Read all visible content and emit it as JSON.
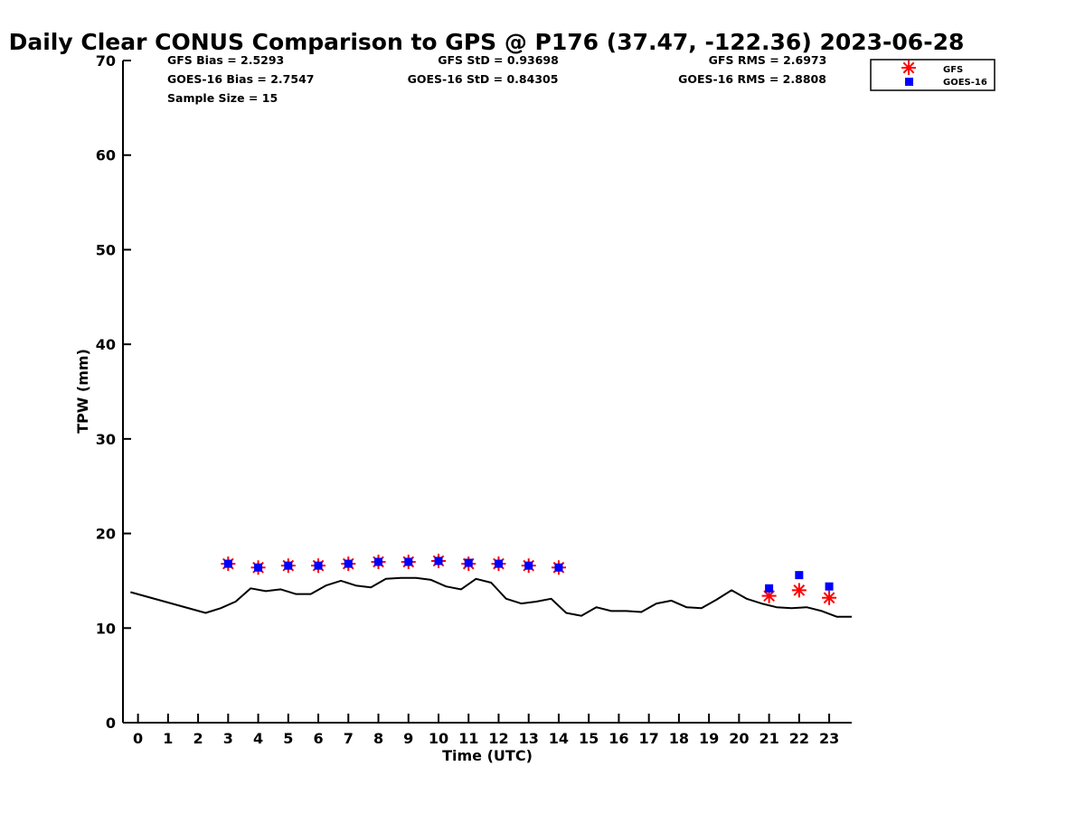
{
  "chart_data": {
    "type": "scatter",
    "title": "Daily Clear CONUS Comparison to GPS @ P176 (37.47, -122.36) 2023-06-28",
    "xlabel": "Time (UTC)",
    "ylabel": "TPW (mm)",
    "xlim": [
      -0.5,
      23.75
    ],
    "ylim": [
      0,
      70
    ],
    "x_ticks": [
      0,
      1,
      2,
      3,
      4,
      5,
      6,
      7,
      8,
      9,
      10,
      11,
      12,
      13,
      14,
      15,
      16,
      17,
      18,
      19,
      20,
      21,
      22,
      23
    ],
    "y_ticks": [
      0,
      10,
      20,
      30,
      40,
      50,
      60,
      70
    ],
    "grid": false,
    "legend_position": "top-right",
    "stats": {
      "gfs_bias": "GFS Bias = 2.5293",
      "goes_bias": "GOES-16 Bias = 2.7547",
      "sample_size": "Sample Size = 15",
      "gfs_std": "GFS StD = 0.93698",
      "goes_std": "GOES-16 StD = 0.84305",
      "gfs_rms": "GFS RMS = 2.6973",
      "goes_rms": "GOES-16 RMS = 2.8808"
    },
    "series": [
      {
        "name": "GFS",
        "marker": "asterisk",
        "color": "#ff0000",
        "x": [
          3,
          4,
          5,
          6,
          7,
          8,
          9,
          10,
          11,
          12,
          13,
          14,
          21,
          22,
          23
        ],
        "y": [
          16.8,
          16.4,
          16.6,
          16.6,
          16.8,
          17.0,
          17.0,
          17.1,
          16.8,
          16.8,
          16.6,
          16.4,
          13.4,
          14.0,
          13.2
        ]
      },
      {
        "name": "GOES-16",
        "marker": "square",
        "color": "#0000ff",
        "x": [
          3,
          4,
          5,
          6,
          7,
          8,
          9,
          10,
          11,
          12,
          13,
          14,
          21,
          22,
          23
        ],
        "y": [
          16.8,
          16.4,
          16.6,
          16.6,
          16.8,
          17.0,
          17.0,
          17.1,
          16.9,
          16.8,
          16.6,
          16.4,
          14.2,
          15.6,
          14.4
        ]
      },
      {
        "marker": "line",
        "color": "#000000",
        "x": [
          -0.25,
          2.25,
          2.75,
          3.25,
          3.75,
          4.25,
          4.75,
          5.25,
          5.75,
          6.25,
          6.75,
          7.25,
          7.75,
          8.25,
          8.75,
          9.25,
          9.75,
          10.25,
          10.75,
          11.25,
          11.75,
          12.25,
          12.75,
          13.25,
          13.75,
          14.25,
          14.75,
          15.25,
          15.75,
          16.25,
          16.75,
          17.25,
          17.75,
          18.25,
          18.75,
          19.25,
          19.75,
          20.25,
          20.75,
          21.25,
          21.75,
          22.25,
          22.75,
          23.25,
          23.75
        ],
        "y": [
          13.8,
          11.6,
          12.1,
          12.8,
          14.2,
          13.9,
          14.1,
          13.6,
          13.6,
          14.5,
          15.0,
          14.5,
          14.3,
          15.2,
          15.3,
          15.3,
          15.1,
          14.4,
          14.1,
          15.2,
          14.8,
          13.1,
          12.6,
          12.8,
          13.1,
          11.6,
          11.3,
          12.2,
          11.8,
          11.8,
          11.7,
          12.6,
          12.9,
          12.2,
          12.1,
          13.0,
          14.0,
          13.1,
          12.6,
          12.2,
          12.1,
          12.2,
          11.8,
          11.2,
          11.2
        ]
      }
    ]
  }
}
